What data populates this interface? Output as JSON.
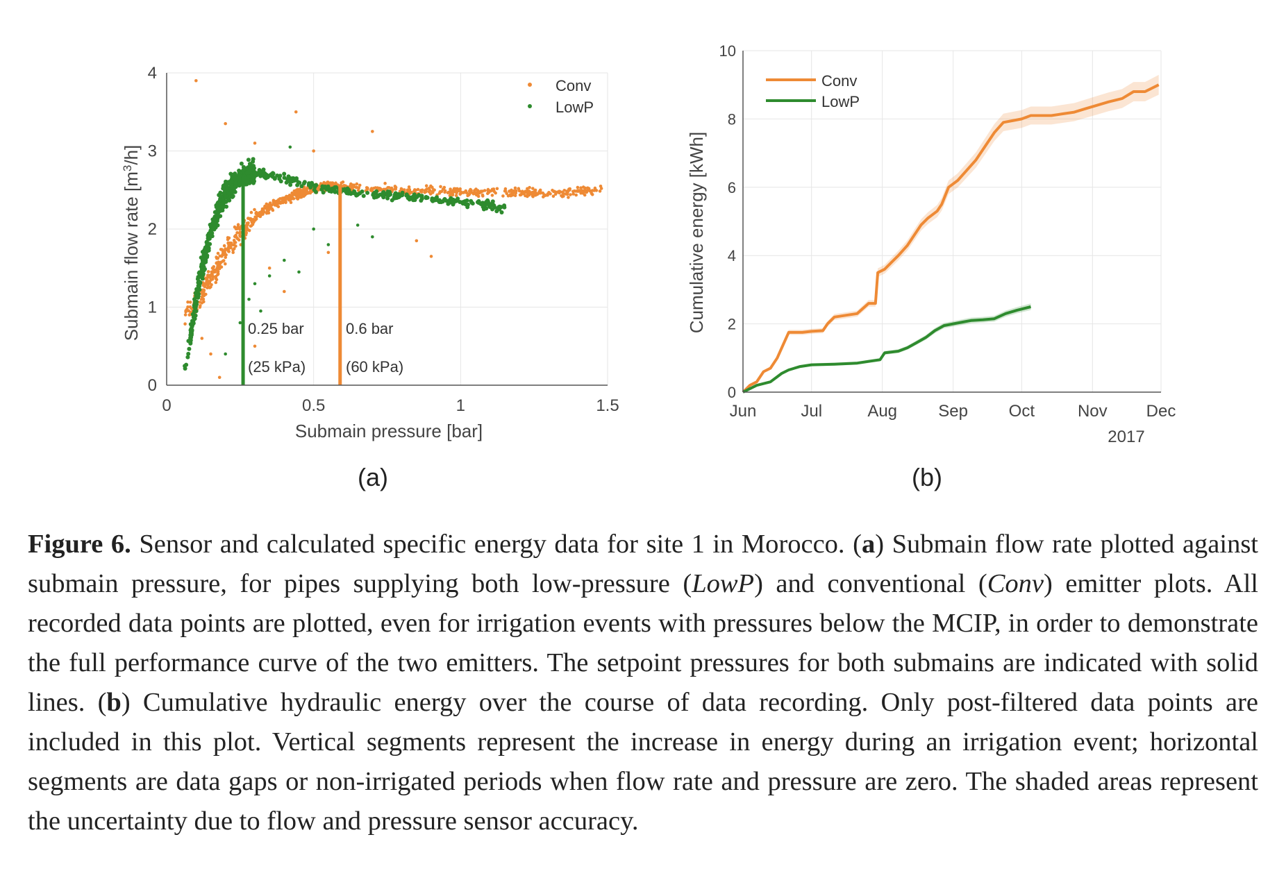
{
  "colors": {
    "conv": "#ee8a35",
    "lowp": "#2e8b2e",
    "axis": "#555555",
    "grid": "#e6e6e6",
    "text": "#333333"
  },
  "chart_data": [
    {
      "id": "a",
      "type": "scatter",
      "panel_label": "(a)",
      "xlabel": "Submain pressure [bar]",
      "ylabel_main": "Submain flow rate [m",
      "ylabel_sup": "3",
      "ylabel_end": "/h]",
      "xlim": [
        0,
        1.5
      ],
      "ylim": [
        0,
        4
      ],
      "xticks": [
        0,
        0.5,
        1,
        1.5
      ],
      "xtick_labels": [
        "0",
        "0.5",
        "1",
        "1.5"
      ],
      "yticks": [
        0,
        1,
        2,
        3,
        4
      ],
      "ytick_labels": [
        "0",
        "1",
        "2",
        "3",
        "4"
      ],
      "legend": [
        "Conv",
        "LowP"
      ],
      "legend_position": "top-right",
      "setpoints": [
        {
          "series": "LowP",
          "x": 0.26,
          "y": 2.65,
          "label1": "0.25 bar",
          "label2": "(25 kPa)"
        },
        {
          "series": "Conv",
          "x": 0.59,
          "y": 2.55,
          "label1": "0.6 bar",
          "label2": "(60 kPa)"
        }
      ],
      "series": [
        {
          "name": "Conv",
          "curve": [
            [
              0.06,
              0.9
            ],
            [
              0.1,
              1.05
            ],
            [
              0.15,
              1.35
            ],
            [
              0.2,
              1.7
            ],
            [
              0.25,
              1.95
            ],
            [
              0.3,
              2.15
            ],
            [
              0.35,
              2.28
            ],
            [
              0.4,
              2.38
            ],
            [
              0.45,
              2.45
            ],
            [
              0.5,
              2.52
            ],
            [
              0.55,
              2.55
            ],
            [
              0.6,
              2.55
            ],
            [
              0.7,
              2.52
            ],
            [
              0.8,
              2.5
            ],
            [
              0.9,
              2.5
            ],
            [
              1.0,
              2.48
            ],
            [
              1.1,
              2.47
            ],
            [
              1.2,
              2.47
            ],
            [
              1.3,
              2.46
            ],
            [
              1.4,
              2.48
            ],
            [
              1.48,
              2.5
            ]
          ],
          "outliers": [
            [
              0.1,
              3.9
            ],
            [
              0.2,
              3.35
            ],
            [
              0.44,
              3.5
            ],
            [
              0.7,
              3.25
            ],
            [
              0.3,
              3.1
            ],
            [
              0.5,
              3.0
            ],
            [
              0.15,
              0.4
            ],
            [
              0.12,
              0.6
            ],
            [
              0.85,
              1.85
            ],
            [
              0.9,
              1.65
            ],
            [
              0.4,
              1.2
            ],
            [
              0.35,
              1.5
            ],
            [
              0.55,
              1.7
            ],
            [
              0.3,
              0.5
            ],
            [
              0.18,
              0.1
            ]
          ]
        },
        {
          "name": "LowP",
          "curve": [
            [
              0.06,
              0.2
            ],
            [
              0.08,
              0.6
            ],
            [
              0.1,
              1.1
            ],
            [
              0.12,
              1.5
            ],
            [
              0.15,
              1.95
            ],
            [
              0.18,
              2.3
            ],
            [
              0.21,
              2.5
            ],
            [
              0.24,
              2.62
            ],
            [
              0.27,
              2.7
            ],
            [
              0.3,
              2.72
            ],
            [
              0.35,
              2.7
            ],
            [
              0.4,
              2.65
            ],
            [
              0.45,
              2.6
            ],
            [
              0.5,
              2.55
            ],
            [
              0.55,
              2.52
            ],
            [
              0.6,
              2.48
            ],
            [
              0.7,
              2.45
            ],
            [
              0.8,
              2.42
            ],
            [
              0.9,
              2.38
            ],
            [
              1.0,
              2.35
            ],
            [
              1.1,
              2.3
            ],
            [
              1.15,
              2.25
            ]
          ],
          "outliers": [
            [
              0.28,
              1.1
            ],
            [
              0.3,
              1.3
            ],
            [
              0.35,
              1.4
            ],
            [
              0.4,
              1.6
            ],
            [
              0.45,
              1.45
            ],
            [
              0.5,
              2.0
            ],
            [
              0.55,
              1.8
            ],
            [
              0.25,
              0.8
            ],
            [
              0.32,
              0.95
            ],
            [
              0.2,
              0.4
            ],
            [
              0.42,
              3.05
            ],
            [
              0.7,
              1.9
            ],
            [
              0.65,
              2.05
            ]
          ]
        }
      ]
    },
    {
      "id": "b",
      "type": "line",
      "panel_label": "(b)",
      "xlabel": "2017",
      "ylabel": "Cumulative energy [kWh]",
      "ylim": [
        0,
        10
      ],
      "yticks": [
        0,
        2,
        4,
        6,
        8,
        10
      ],
      "ytick_labels": [
        "0",
        "2",
        "4",
        "6",
        "8",
        "10"
      ],
      "xlim_days": [
        0,
        183
      ],
      "xtick_days": [
        0,
        30,
        61,
        92,
        122,
        153,
        183
      ],
      "xtick_labels": [
        "Jun",
        "Jul",
        "Aug",
        "Sep",
        "Oct",
        "Nov",
        "Dec"
      ],
      "legend": [
        "Conv",
        "LowP"
      ],
      "legend_position": "top-left",
      "uncertainty_fraction": 0.03,
      "series": [
        {
          "name": "Conv",
          "points": [
            [
              0,
              0
            ],
            [
              3,
              0.2
            ],
            [
              6,
              0.3
            ],
            [
              9,
              0.6
            ],
            [
              12,
              0.7
            ],
            [
              15,
              1.0
            ],
            [
              17,
              1.3
            ],
            [
              20,
              1.75
            ],
            [
              26,
              1.75
            ],
            [
              30,
              1.78
            ],
            [
              35,
              1.8
            ],
            [
              37,
              2.0
            ],
            [
              40,
              2.2
            ],
            [
              45,
              2.25
            ],
            [
              50,
              2.3
            ],
            [
              55,
              2.6
            ],
            [
              58,
              2.6
            ],
            [
              59,
              3.5
            ],
            [
              62,
              3.6
            ],
            [
              65,
              3.8
            ],
            [
              68,
              4.0
            ],
            [
              72,
              4.3
            ],
            [
              75,
              4.6
            ],
            [
              78,
              4.9
            ],
            [
              81,
              5.1
            ],
            [
              85,
              5.3
            ],
            [
              87,
              5.5
            ],
            [
              90,
              6.0
            ],
            [
              94,
              6.2
            ],
            [
              98,
              6.5
            ],
            [
              102,
              6.8
            ],
            [
              106,
              7.2
            ],
            [
              110,
              7.6
            ],
            [
              114,
              7.9
            ],
            [
              118,
              7.95
            ],
            [
              122,
              8.0
            ],
            [
              126,
              8.1
            ],
            [
              130,
              8.1
            ],
            [
              135,
              8.1
            ],
            [
              140,
              8.15
            ],
            [
              145,
              8.2
            ],
            [
              150,
              8.3
            ],
            [
              155,
              8.4
            ],
            [
              160,
              8.5
            ],
            [
              166,
              8.6
            ],
            [
              171,
              8.8
            ],
            [
              176,
              8.8
            ],
            [
              182,
              9.0
            ]
          ]
        },
        {
          "name": "LowP",
          "points": [
            [
              0,
              0
            ],
            [
              3,
              0.1
            ],
            [
              6,
              0.2
            ],
            [
              9,
              0.25
            ],
            [
              12,
              0.3
            ],
            [
              15,
              0.45
            ],
            [
              17,
              0.55
            ],
            [
              20,
              0.65
            ],
            [
              25,
              0.75
            ],
            [
              30,
              0.8
            ],
            [
              40,
              0.82
            ],
            [
              50,
              0.85
            ],
            [
              55,
              0.9
            ],
            [
              60,
              0.95
            ],
            [
              62,
              1.15
            ],
            [
              68,
              1.2
            ],
            [
              72,
              1.3
            ],
            [
              76,
              1.45
            ],
            [
              80,
              1.6
            ],
            [
              84,
              1.8
            ],
            [
              88,
              1.95
            ],
            [
              92,
              2.0
            ],
            [
              96,
              2.05
            ],
            [
              100,
              2.1
            ],
            [
              105,
              2.12
            ],
            [
              110,
              2.15
            ],
            [
              115,
              2.3
            ],
            [
              120,
              2.4
            ],
            [
              126,
              2.5
            ]
          ]
        }
      ]
    }
  ],
  "caption": {
    "figure_label": "Figure 6.",
    "text_1": " Sensor and calculated specific energy data for site 1 in Morocco. (",
    "bold_a": "a",
    "text_2": ") Submain flow rate plotted against submain pressure, for pipes supplying both low-pressure (",
    "italic_lowp": "LowP",
    "text_3": ") and conventional (",
    "italic_conv": "Conv",
    "text_4": ") emitter plots. All recorded data points are plotted, even for irrigation events with pressures below the MCIP, in order to demonstrate the full performance curve of the two emitters. The setpoint pressures for both submains are indicated with solid lines. (",
    "bold_b": "b",
    "text_5": ") Cumulative hydraulic energy over the course of data recording. Only post-filtered data points are included in this plot. Vertical segments represent the increase in energy during an irrigation event; horizontal segments are data gaps or non-irrigated periods when flow rate and pressure are zero. The shaded areas represent the uncertainty due to flow and pressure sensor accuracy."
  }
}
